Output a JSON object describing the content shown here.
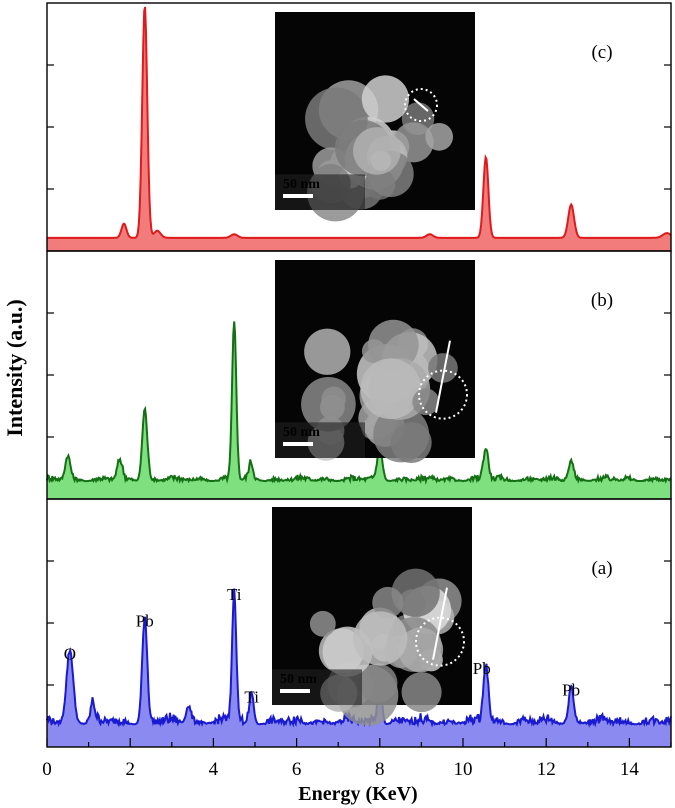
{
  "chart_data": {
    "type": "line",
    "xlabel": "Energy (KeV)",
    "ylabel": "Intensity (a.u.)",
    "xlim": [
      0,
      15
    ],
    "x_ticks": [
      0,
      2,
      4,
      6,
      8,
      10,
      12,
      14
    ],
    "grid": false,
    "panels": [
      {
        "id": "c",
        "label": "(c)",
        "color": "#e01a1a",
        "fill": "#f27c7c",
        "baseline": 0.03,
        "noise": 0.0,
        "peaks": [
          {
            "x": 1.85,
            "h": 0.06,
            "w": 0.06
          },
          {
            "x": 2.35,
            "h": 0.98,
            "w": 0.06
          },
          {
            "x": 2.65,
            "h": 0.03,
            "w": 0.08
          },
          {
            "x": 4.5,
            "h": 0.015,
            "w": 0.08
          },
          {
            "x": 9.2,
            "h": 0.015,
            "w": 0.08
          },
          {
            "x": 10.55,
            "h": 0.34,
            "w": 0.06
          },
          {
            "x": 12.6,
            "h": 0.14,
            "w": 0.07
          },
          {
            "x": 14.9,
            "h": 0.02,
            "w": 0.1
          }
        ],
        "peak_labels": [],
        "inset_scale": "50 nm"
      },
      {
        "id": "b",
        "label": "(b)",
        "color": "#157015",
        "fill": "#7fe07f",
        "baseline": 0.05,
        "noise": 0.03,
        "peaks": [
          {
            "x": 0.5,
            "h": 0.1,
            "w": 0.06
          },
          {
            "x": 1.75,
            "h": 0.08,
            "w": 0.06
          },
          {
            "x": 2.35,
            "h": 0.3,
            "w": 0.06
          },
          {
            "x": 4.5,
            "h": 0.66,
            "w": 0.05
          },
          {
            "x": 4.9,
            "h": 0.07,
            "w": 0.05
          },
          {
            "x": 8.0,
            "h": 0.13,
            "w": 0.06
          },
          {
            "x": 10.55,
            "h": 0.13,
            "w": 0.06
          },
          {
            "x": 12.6,
            "h": 0.08,
            "w": 0.06
          }
        ],
        "peak_labels": [],
        "inset_scale": "50 nm"
      },
      {
        "id": "a",
        "label": "(a)",
        "color": "#1a1ad0",
        "fill": "#8a8af0",
        "baseline": 0.07,
        "noise": 0.05,
        "peaks": [
          {
            "x": 0.55,
            "h": 0.3,
            "w": 0.08
          },
          {
            "x": 1.1,
            "h": 0.08,
            "w": 0.05
          },
          {
            "x": 2.35,
            "h": 0.44,
            "w": 0.06
          },
          {
            "x": 3.4,
            "h": 0.07,
            "w": 0.06
          },
          {
            "x": 4.5,
            "h": 0.55,
            "w": 0.05
          },
          {
            "x": 4.92,
            "h": 0.12,
            "w": 0.05
          },
          {
            "x": 8.0,
            "h": 0.18,
            "w": 0.05
          },
          {
            "x": 10.55,
            "h": 0.24,
            "w": 0.06
          },
          {
            "x": 12.6,
            "h": 0.15,
            "w": 0.06
          }
        ],
        "peak_labels": [
          {
            "text": "O",
            "x": 0.55,
            "h": 0.3
          },
          {
            "text": "Pb",
            "x": 2.35,
            "h": 0.44
          },
          {
            "text": "Ti",
            "x": 4.5,
            "h": 0.55
          },
          {
            "text": "Ti",
            "x": 4.92,
            "h": 0.12
          },
          {
            "text": "Pb",
            "x": 10.45,
            "h": 0.24
          },
          {
            "text": "Pb",
            "x": 12.6,
            "h": 0.15
          }
        ],
        "inset_scale": "50 nm"
      }
    ]
  }
}
